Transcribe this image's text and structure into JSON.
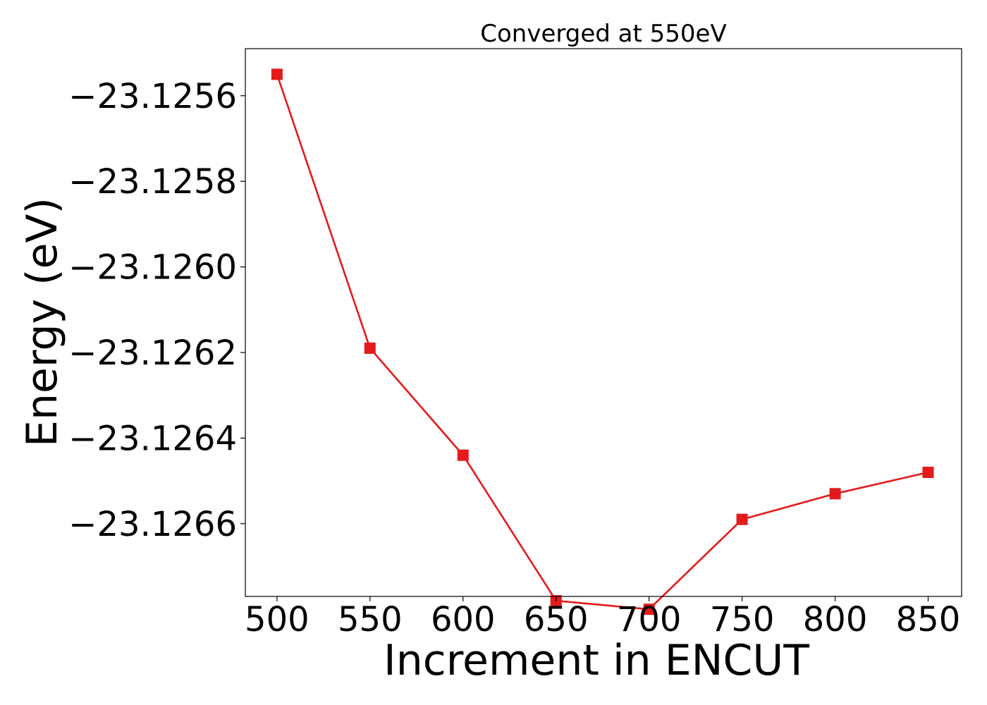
{
  "chart_data": {
    "type": "line",
    "title": "Converged at 550eV",
    "xlabel": "Increment in ENCUT",
    "ylabel": "Energy (eV)",
    "x": [
      500,
      550,
      600,
      650,
      700,
      750,
      800,
      850
    ],
    "series": [
      {
        "values": [
          -23.12555,
          -23.12619,
          -23.12644,
          -23.12678,
          -23.1268,
          -23.12659,
          -23.12653,
          -23.12648
        ],
        "color": "#e41a1c",
        "marker": "square"
      }
    ],
    "xlim": [
      483,
      868
    ],
    "ylim": [
      -23.12677,
      -23.12549
    ],
    "xticks": [
      500,
      550,
      600,
      650,
      700,
      750,
      800,
      850
    ],
    "xtick_labels": [
      "500",
      "550",
      "600",
      "650",
      "700",
      "750",
      "800",
      "850"
    ],
    "yticks": [
      -23.1256,
      -23.1258,
      -23.126,
      -23.1262,
      -23.1264,
      -23.1266
    ],
    "ytick_labels": [
      "−23.1256",
      "−23.1258",
      "−23.1260",
      "−23.1262",
      "−23.1264",
      "−23.1266"
    ],
    "grid": false,
    "legend": "none"
  }
}
